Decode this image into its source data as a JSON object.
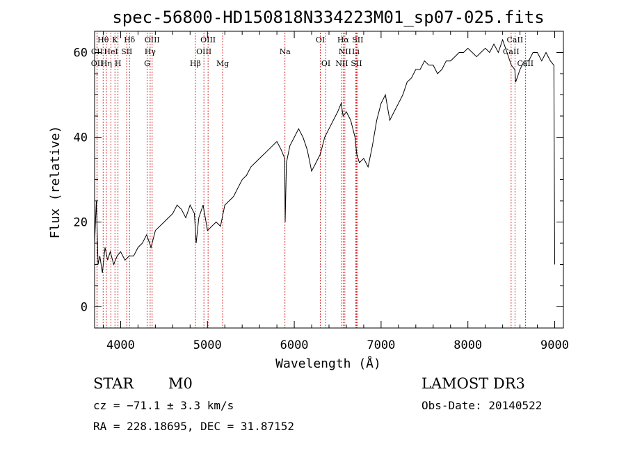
{
  "chart_data": {
    "type": "line",
    "title": "spec-56800-HD150818N334223M01_sp07-025.fits",
    "xlabel": "Wavelength (Å)",
    "ylabel": "Flux (relative)",
    "xlim": [
      3700,
      9100
    ],
    "ylim": [
      -5,
      65
    ],
    "xticks": [
      4000,
      5000,
      6000,
      7000,
      8000,
      9000
    ],
    "yticks": [
      0,
      20,
      40,
      60
    ],
    "series": [
      {
        "name": "flux",
        "x": [
          3700,
          3720,
          3740,
          3760,
          3790,
          3820,
          3850,
          3880,
          3920,
          3960,
          4000,
          4050,
          4100,
          4150,
          4200,
          4250,
          4300,
          4350,
          4400,
          4450,
          4500,
          4550,
          4600,
          4650,
          4700,
          4750,
          4800,
          4850,
          4870,
          4900,
          4950,
          5000,
          5050,
          5100,
          5150,
          5200,
          5250,
          5300,
          5350,
          5400,
          5450,
          5500,
          5550,
          5600,
          5650,
          5700,
          5750,
          5800,
          5850,
          5890,
          5895,
          5910,
          5950,
          6000,
          6050,
          6100,
          6150,
          6200,
          6250,
          6300,
          6350,
          6400,
          6450,
          6500,
          6540,
          6563,
          6600,
          6650,
          6700,
          6720,
          6750,
          6800,
          6850,
          6900,
          6950,
          7000,
          7050,
          7100,
          7150,
          7200,
          7250,
          7300,
          7350,
          7400,
          7450,
          7500,
          7550,
          7600,
          7650,
          7700,
          7750,
          7800,
          7850,
          7900,
          7950,
          8000,
          8050,
          8100,
          8150,
          8200,
          8250,
          8300,
          8350,
          8400,
          8450,
          8500,
          8540,
          8550,
          8600,
          8650,
          8700,
          8750,
          8800,
          8850,
          8900,
          8950,
          8990,
          9000
        ],
        "y": [
          15,
          25,
          10,
          12,
          8,
          14,
          11,
          13,
          10,
          12,
          13,
          11,
          12,
          12,
          14,
          15,
          17,
          14,
          18,
          19,
          20,
          21,
          22,
          24,
          23,
          21,
          24,
          22,
          15,
          21,
          24,
          18,
          19,
          20,
          19,
          24,
          25,
          26,
          28,
          30,
          31,
          33,
          34,
          35,
          36,
          37,
          38,
          39,
          37,
          35,
          20,
          34,
          38,
          40,
          42,
          40,
          37,
          32,
          34,
          36,
          40,
          42,
          44,
          46,
          48,
          45,
          46,
          44,
          40,
          36,
          34,
          35,
          33,
          38,
          44,
          48,
          50,
          44,
          46,
          48,
          50,
          53,
          54,
          56,
          56,
          58,
          57,
          57,
          55,
          56,
          58,
          58,
          59,
          60,
          60,
          61,
          60,
          59,
          60,
          61,
          60,
          62,
          60,
          63,
          60,
          57,
          56,
          53,
          56,
          58,
          58,
          60,
          60,
          58,
          60,
          58,
          57,
          10
        ]
      }
    ],
    "line_labels": [
      {
        "text": "Hθ",
        "x": 3798,
        "row": 0
      },
      {
        "text": "K",
        "x": 3934,
        "row": 0
      },
      {
        "text": "Hδ",
        "x": 4102,
        "row": 0
      },
      {
        "text": "OIII",
        "x": 4363,
        "row": 0
      },
      {
        "text": "OIII",
        "x": 5007,
        "row": 0
      },
      {
        "text": "OI",
        "x": 6300,
        "row": 0
      },
      {
        "text": "Hα",
        "x": 6563,
        "row": 0
      },
      {
        "text": "SII",
        "x": 6731,
        "row": 0
      },
      {
        "text": "CaII",
        "x": 8542,
        "row": 0
      },
      {
        "text": "CII",
        "x": 3727,
        "row": 1
      },
      {
        "text": "HeI",
        "x": 3889,
        "row": 1
      },
      {
        "text": "SII",
        "x": 4070,
        "row": 1
      },
      {
        "text": "Hγ",
        "x": 4340,
        "row": 1
      },
      {
        "text": "OIII",
        "x": 4959,
        "row": 1
      },
      {
        "text": "Na",
        "x": 5893,
        "row": 1
      },
      {
        "text": "NII",
        "x": 6583,
        "row": 1
      },
      {
        "text": "Li",
        "x": 6708,
        "row": 1
      },
      {
        "text": "CaII",
        "x": 8498,
        "row": 1
      },
      {
        "text": "OII",
        "x": 3729,
        "row": 2
      },
      {
        "text": "Hη",
        "x": 3835,
        "row": 2
      },
      {
        "text": "H",
        "x": 3970,
        "row": 2
      },
      {
        "text": "G",
        "x": 4305,
        "row": 2
      },
      {
        "text": "Hβ",
        "x": 4861,
        "row": 2
      },
      {
        "text": "Mg",
        "x": 5175,
        "row": 2
      },
      {
        "text": "OI",
        "x": 6364,
        "row": 2
      },
      {
        "text": "NII",
        "x": 6548,
        "row": 2
      },
      {
        "text": "SII",
        "x": 6716,
        "row": 2
      },
      {
        "text": "CaII",
        "x": 8662,
        "row": 2
      }
    ],
    "line_color": "#000000",
    "marker_color": "#cc0000"
  },
  "info": {
    "class": "STAR",
    "subclass": "M0",
    "survey": "LAMOST DR3",
    "cz": "cz = −71.1 ± 3.3 km/s",
    "obs_date": "Obs-Date: 20140522",
    "coords": "RA = 228.18695, DEC =  31.87152"
  }
}
